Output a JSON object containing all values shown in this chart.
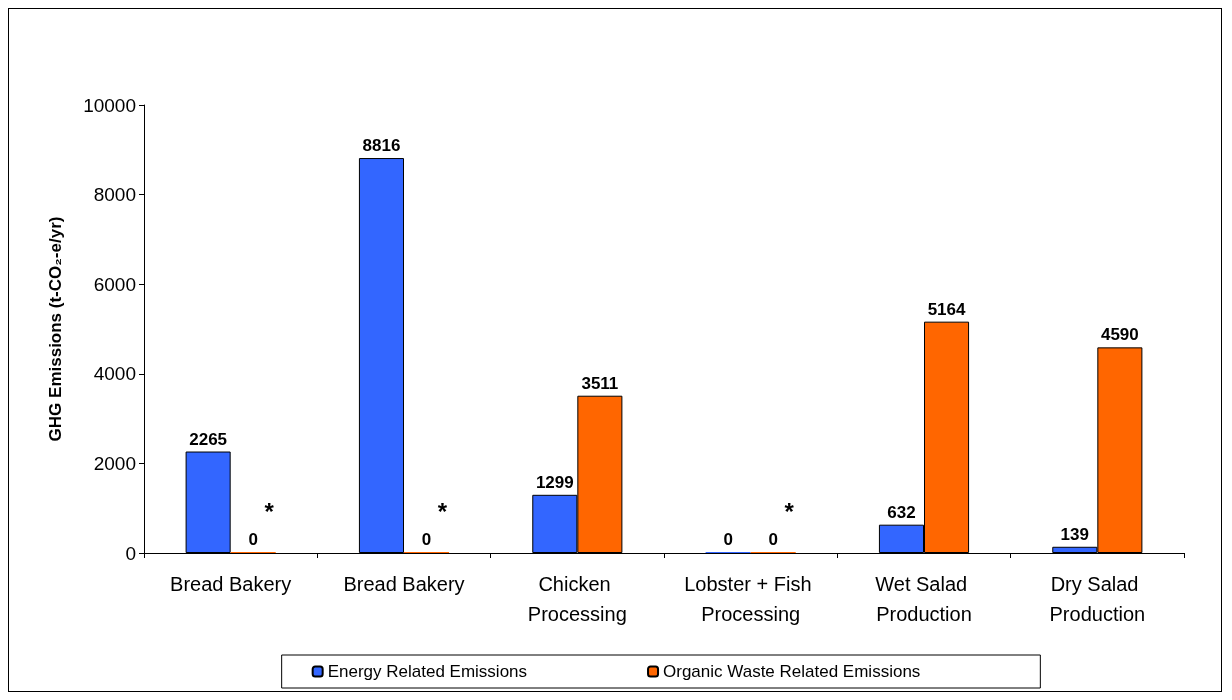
{
  "chart_data": {
    "type": "bar",
    "ylabel": "GHG Emissions (t-CO₂-e/yr)",
    "categories": [
      "Bread Bakery",
      "Bread Bakery",
      "Chicken Processing",
      "Lobster + Fish Processing",
      "Wet Salad Production",
      "Dry Salad Production"
    ],
    "series": [
      {
        "name": "Energy Related Emissions",
        "color": "#3366ff",
        "values": [
          2265,
          8816,
          1299,
          0,
          632,
          139
        ]
      },
      {
        "name": "Organic Waste Related Emissions",
        "color": "#ff6600",
        "values": [
          0,
          0,
          3511,
          0,
          5164,
          4590
        ]
      }
    ],
    "ylim": [
      0,
      10000
    ],
    "yticks": [
      0,
      2000,
      4000,
      6000,
      8000,
      10000
    ],
    "grid": false,
    "legend": "bottom",
    "data_labels": true,
    "annotations": [
      "*",
      "*",
      "*"
    ]
  }
}
